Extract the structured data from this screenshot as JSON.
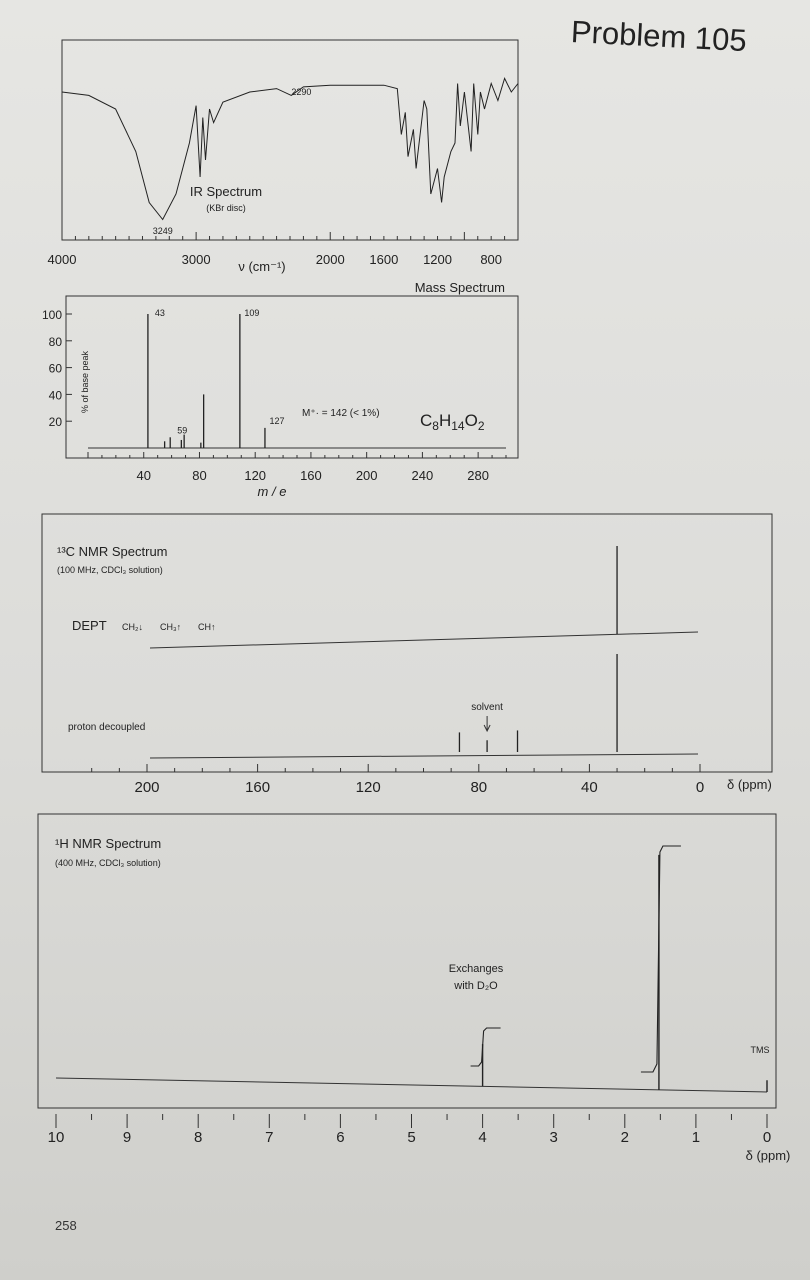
{
  "page": {
    "title": "Problem 105",
    "page_number": "258"
  },
  "chart_data": [
    {
      "type": "line",
      "title": "IR Spectrum",
      "subtitle": "(KBr disc)",
      "xlabel": "ν (cm⁻¹)",
      "xlim": [
        4000,
        600
      ],
      "x_ticks": [
        "4000",
        "3000",
        "2000",
        "1600",
        "1200",
        "800"
      ],
      "annotations": [
        {
          "label": "3249",
          "x": 3249
        },
        {
          "label": "2290",
          "x": 2290
        }
      ],
      "x": [
        4000,
        3800,
        3600,
        3450,
        3350,
        3249,
        3150,
        3050,
        3000,
        2970,
        2950,
        2930,
        2900,
        2870,
        2800,
        2600,
        2400,
        2290,
        2200,
        2000,
        1800,
        1600,
        1500,
        1470,
        1440,
        1420,
        1380,
        1360,
        1300,
        1280,
        1250,
        1200,
        1170,
        1150,
        1100,
        1070,
        1050,
        1030,
        1000,
        950,
        930,
        900,
        880,
        850,
        800,
        750,
        700,
        650,
        600
      ],
      "y": [
        80,
        78,
        70,
        45,
        15,
        5,
        20,
        50,
        72,
        30,
        65,
        40,
        70,
        62,
        74,
        80,
        82,
        78,
        83,
        84,
        84,
        84,
        82,
        55,
        68,
        42,
        58,
        35,
        75,
        70,
        20,
        35,
        15,
        30,
        45,
        50,
        85,
        60,
        80,
        45,
        85,
        55,
        80,
        70,
        85,
        75,
        88,
        80,
        85
      ]
    },
    {
      "type": "bar",
      "title": "Mass Spectrum",
      "xlabel": "m / e",
      "ylabel": "% of base peak",
      "xlim": [
        0,
        300
      ],
      "ylim": [
        0,
        100
      ],
      "x_ticks": [
        40,
        80,
        120,
        160,
        200,
        240,
        280
      ],
      "y_ticks": [
        20,
        40,
        60,
        80,
        100
      ],
      "x": [
        43,
        55,
        59,
        67,
        69,
        81,
        83,
        109,
        127
      ],
      "values": [
        100,
        5,
        8,
        6,
        10,
        4,
        40,
        100,
        15
      ],
      "peak_labels": [
        {
          "x": 43,
          "label": "43"
        },
        {
          "x": 59,
          "label": "59"
        },
        {
          "x": 109,
          "label": "109"
        },
        {
          "x": 127,
          "label": "127"
        }
      ],
      "molecular_ion": "M⁺· = 142 (< 1%)",
      "formula": {
        "C": "C",
        "C_sub": "8",
        "H": "H",
        "H_sub": "14",
        "O": "O",
        "O_sub": "2"
      }
    },
    {
      "type": "bar",
      "title": "¹³C NMR Spectrum",
      "subtitle": "(100 MHz, CDCl₃ solution)",
      "xlabel": "δ (ppm)",
      "xlim": [
        220,
        0
      ],
      "x_ticks": [
        200,
        160,
        120,
        80,
        40,
        0
      ],
      "dept_label": "DEPT",
      "dept_legend": [
        "CH₂↓",
        "CH₃↑",
        "CH↑"
      ],
      "dept_x": [
        30
      ],
      "dept_values": [
        100
      ],
      "decoupled_label": "proton decoupled",
      "decoupled_x": [
        87,
        77,
        66,
        30
      ],
      "decoupled_values": [
        20,
        12,
        22,
        100
      ],
      "solvent_label": "solvent",
      "solvent_x": 77
    },
    {
      "type": "line",
      "title": "¹H NMR Spectrum",
      "subtitle": "(400 MHz, CDCl₃ solution)",
      "xlabel": "δ (ppm)",
      "xlim": [
        10,
        0
      ],
      "x_ticks": [
        10,
        9,
        8,
        7,
        6,
        5,
        4,
        3,
        2,
        1,
        0
      ],
      "peaks": [
        {
          "x": 4.0,
          "height": 18
        },
        {
          "x": 1.52,
          "height": 100
        },
        {
          "x": 0,
          "height": 5
        }
      ],
      "integrals": [
        {
          "x": 4.0,
          "relative": 1
        },
        {
          "x": 1.52,
          "relative": 12
        }
      ],
      "annotation": "Exchanges with D₂O",
      "tms_label": "TMS"
    }
  ]
}
